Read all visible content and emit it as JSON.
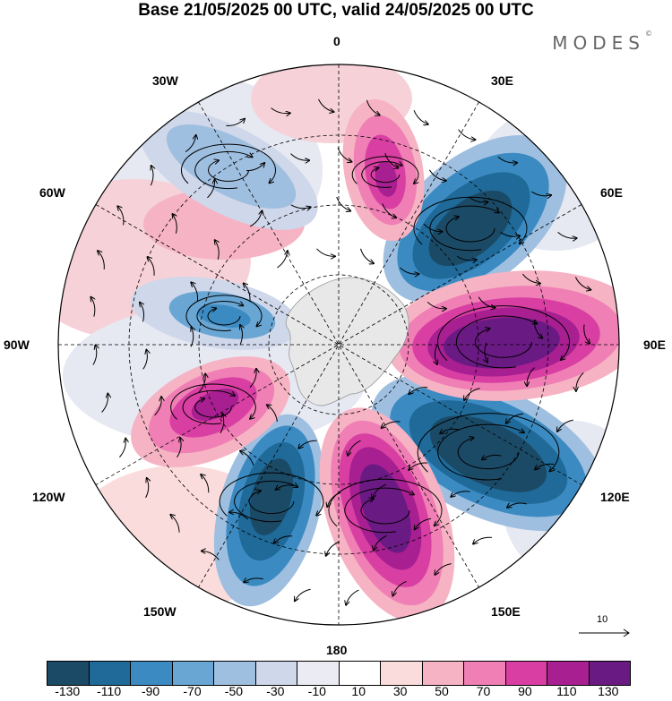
{
  "title": "Base 21/05/2025 00 UTC, valid 24/05/2025 00 UTC",
  "brand": "MODES",
  "brand_mark": "©",
  "longitude_labels": {
    "lon_0": "0",
    "lon_30e": "30E",
    "lon_60e": "60E",
    "lon_90e": "90E",
    "lon_120e": "120E",
    "lon_150e": "150E",
    "lon_180": "180",
    "lon_150w": "150W",
    "lon_120w": "120W",
    "lon_90w": "90W",
    "lon_60w": "60W",
    "lon_30w": "30W"
  },
  "reference_vector": {
    "label": "10"
  },
  "colorbar": {
    "colors": [
      "#1b4a66",
      "#1f6a99",
      "#3b8bc2",
      "#6aa6d3",
      "#9fbfe0",
      "#cfd7ea",
      "#ebebf3",
      "#ffffff",
      "#fbdcdc",
      "#f6b3c3",
      "#ef7fb4",
      "#d93fa3",
      "#a81f91",
      "#6a1a83"
    ],
    "ticks": [
      "-130",
      "-110",
      "-90",
      "-70",
      "-50",
      "-30",
      "-10",
      "10",
      "30",
      "50",
      "70",
      "90",
      "110",
      "130"
    ]
  }
}
